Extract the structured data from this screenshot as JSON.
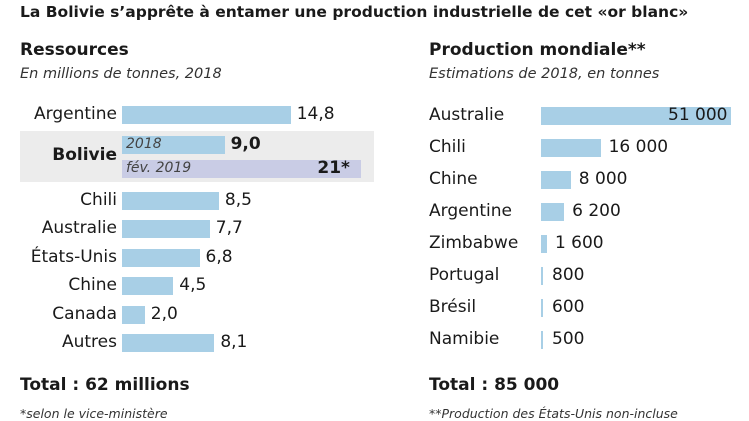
{
  "headline": "La Bolivie s’apprête à entamer une production industrielle de cet «or blanc»",
  "chart_data": [
    {
      "type": "bar",
      "orientation": "horizontal",
      "title": "Ressources",
      "subtitle": "En millions de tonnes, 2018",
      "categories": [
        "Argentine",
        "Chili",
        "Australie",
        "États-Unis",
        "Chine",
        "Canada",
        "Autres"
      ],
      "values": [
        14.8,
        8.5,
        7.7,
        6.8,
        4.5,
        2.0,
        8.1
      ],
      "value_labels": [
        "14,8",
        "8,5",
        "7,7",
        "6,8",
        "4,5",
        "2,0",
        "8,1"
      ],
      "highlight": {
        "category": "Bolivie",
        "series": [
          {
            "name": "2018",
            "value": 9.0,
            "label": "9,0"
          },
          {
            "name": "fév. 2019",
            "value": 21,
            "label": "21*"
          }
        ]
      },
      "total": "Total : 62 millions",
      "footnote": "*selon le vice-ministère"
    },
    {
      "type": "bar",
      "orientation": "horizontal",
      "title": "Production mondiale**",
      "subtitle": "Estimations de 2018, en tonnes",
      "categories": [
        "Australie",
        "Chili",
        "Chine",
        "Argentine",
        "Zimbabwe",
        "Portugal",
        "Brésil",
        "Namibie"
      ],
      "values": [
        51000,
        16000,
        8000,
        6200,
        1600,
        800,
        600,
        500
      ],
      "value_labels": [
        "51 000",
        "16 000",
        "8 000",
        "6 200",
        "1 600",
        "800",
        "600",
        "500"
      ],
      "total": "Total : 85 000",
      "footnote": "**Production des États-Unis non-incluse"
    }
  ]
}
